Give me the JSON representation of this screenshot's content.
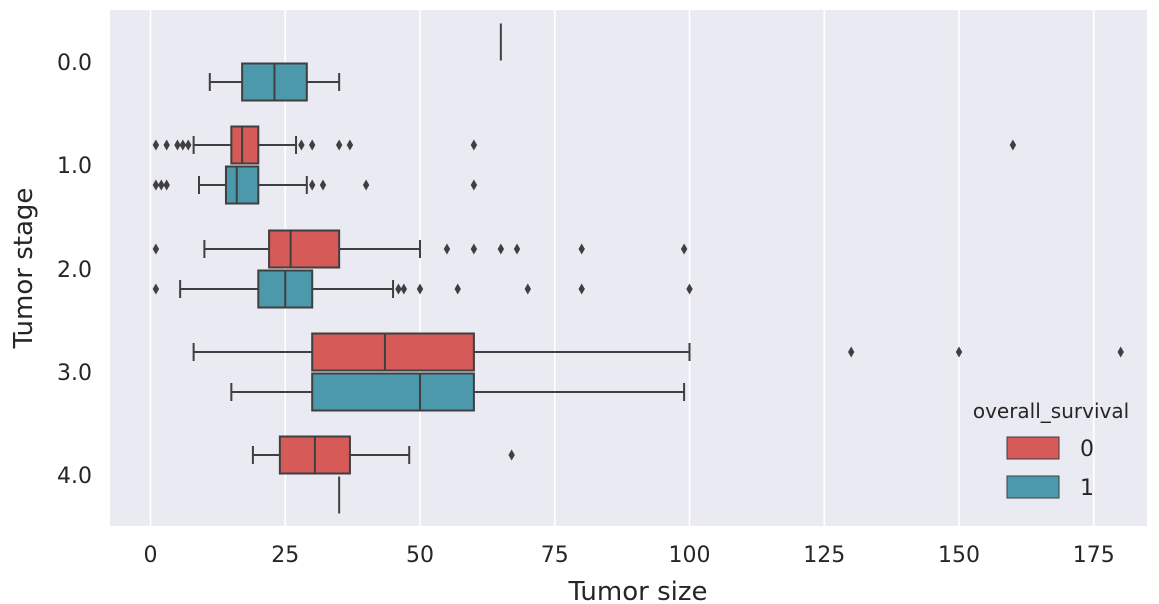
{
  "chart_data": {
    "type": "boxplot",
    "orientation": "horizontal",
    "xlabel": "Tumor size",
    "ylabel": "Tumor stage",
    "xlim": [
      -8,
      186
    ],
    "xticks": [
      0,
      25,
      50,
      75,
      100,
      125,
      150,
      175
    ],
    "categories": [
      "0.0",
      "1.0",
      "2.0",
      "3.0",
      "4.0"
    ],
    "grid": true,
    "legend": {
      "title": "overall_survival",
      "placement": "bottom-right",
      "entries": [
        {
          "label": "0",
          "color": "#d65a58"
        },
        {
          "label": "1",
          "color": "#4c99ac"
        }
      ]
    },
    "series": [
      {
        "name": "0",
        "color": "#d65a58",
        "boxes": [
          {
            "category": "0.0",
            "min": 65,
            "q1": 65,
            "median": 65,
            "q3": 65,
            "max": 65,
            "outliers": []
          },
          {
            "category": "1.0",
            "min": 8,
            "q1": 15,
            "median": 17,
            "q3": 20,
            "max": 27,
            "outliers": [
              1,
              3,
              5,
              6,
              7,
              28,
              30,
              35,
              37,
              60,
              160
            ]
          },
          {
            "category": "2.0",
            "min": 10,
            "q1": 22,
            "median": 26,
            "q3": 35,
            "max": 50,
            "outliers": [
              1,
              55,
              60,
              65,
              68,
              80,
              99
            ]
          },
          {
            "category": "3.0",
            "min": 8,
            "q1": 30,
            "median": 43.5,
            "q3": 60,
            "max": 100,
            "outliers": [
              130,
              150,
              180
            ]
          },
          {
            "category": "4.0",
            "min": 19,
            "q1": 24,
            "median": 30.5,
            "q3": 37,
            "max": 48,
            "outliers": [
              67
            ]
          }
        ]
      },
      {
        "name": "1",
        "color": "#4c99ac",
        "boxes": [
          {
            "category": "0.0",
            "min": 11,
            "q1": 17,
            "median": 23,
            "q3": 29,
            "max": 35,
            "outliers": []
          },
          {
            "category": "1.0",
            "min": 9,
            "q1": 14,
            "median": 16,
            "q3": 20,
            "max": 29,
            "outliers": [
              1,
              2,
              3,
              30,
              32,
              40,
              60
            ]
          },
          {
            "category": "2.0",
            "min": 5.5,
            "q1": 20,
            "median": 25,
            "q3": 30,
            "max": 45,
            "outliers": [
              1,
              46,
              47,
              50,
              57,
              70,
              80,
              100
            ]
          },
          {
            "category": "3.0",
            "min": 15,
            "q1": 30,
            "median": 50,
            "q3": 60,
            "max": 99,
            "outliers": []
          },
          {
            "category": "4.0",
            "min": 35,
            "q1": 35,
            "median": 35,
            "q3": 35,
            "max": 35,
            "outliers": []
          }
        ]
      }
    ]
  }
}
